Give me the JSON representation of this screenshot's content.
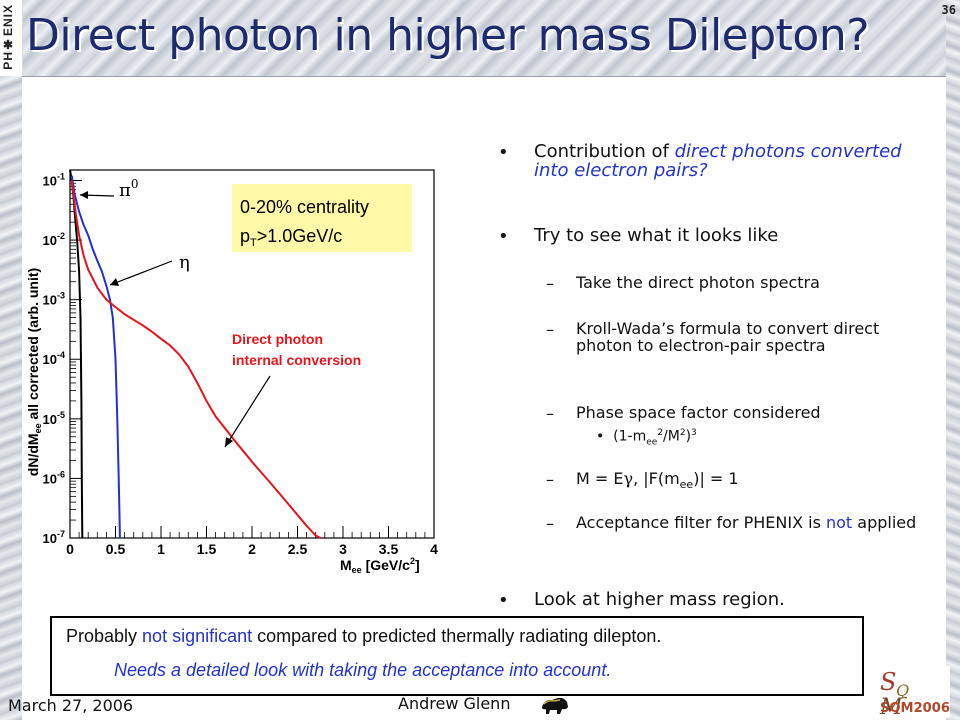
{
  "slide": {
    "number": "36",
    "title": "Direct photon in higher mass Dilepton?",
    "logo_text": "PH✱ENIX"
  },
  "bullets": {
    "b1_pre": "Contribution of ",
    "b1_blue": "direct photons converted into electron pairs?",
    "b2": "Try to see what it looks like",
    "s1": "Take the direct photon spectra",
    "s2": "Kroll-Wada’s formula to convert direct photon to electron-pair spectra",
    "s3": "Phase space factor considered",
    "s3_sub": "(1-m",
    "s3_sub_ee": "ee",
    "s3_sub_rest": "/M",
    "s3_sub_end": ")",
    "s4_pre": "M = E",
    "s4_gamma": "γ",
    "s4_mid": ",  |F(m",
    "s4_ee": "ee",
    "s4_end": ")| = 1",
    "s5_pre": "Acceptance filter for PHENIX is ",
    "s5_blue": "not",
    "s5_post": " applied",
    "b3": "Look at higher mass region."
  },
  "box": {
    "l1_pre": "Probably ",
    "l1_blue": "not significant",
    "l1_post": " compared to predicted thermally radiating dilepton.",
    "l2": "Needs a detailed look with taking the acceptance into account."
  },
  "footer": {
    "date": "March 27, 2006",
    "author": "Andrew Glenn",
    "conf": "SQM2006"
  },
  "chart_data": {
    "type": "line",
    "xlabel": "M",
    "xlabel_sub": "ee",
    "xlabel_units": " [GeV/c",
    "xlabel_units_end": "]",
    "ylabel": "dN/dM",
    "ylabel_sub": "ee",
    "ylabel_rest": " all corrected (arb. unit)",
    "xlim": [
      0,
      4
    ],
    "ylim": [
      1e-07,
      0.15
    ],
    "yscale": "log",
    "x_ticks": [
      "0",
      "0.5",
      "1",
      "1.5",
      "2",
      "2.5",
      "3",
      "3.5",
      "4"
    ],
    "y_ticks": [
      "10",
      "10",
      "10",
      "10",
      "10",
      "10",
      "10"
    ],
    "y_tick_exps": [
      "-1",
      "-2",
      "-3",
      "-4",
      "-5",
      "-6",
      "-7"
    ],
    "legend_box": {
      "line1": "0-20% centrality",
      "line2_pre": "p",
      "line2_sub": "T",
      "line2_post": ">1.0GeV/c"
    },
    "labels": {
      "pi0": "π",
      "pi0_sup": "0",
      "eta": "η",
      "direct": "Direct photon",
      "direct2": "internal conversion"
    },
    "colors": {
      "pi0": "#000000",
      "eta": "#2233cc",
      "direct": "#e8141b",
      "legend_bg": "#fff9a8"
    },
    "series": [
      {
        "id": "pi0",
        "x": [
          0.0,
          0.02,
          0.04,
          0.06,
          0.08,
          0.1,
          0.115,
          0.125,
          0.13,
          0.135
        ],
        "y": [
          0.15,
          0.1,
          0.05,
          0.02,
          0.009,
          0.003,
          0.0005,
          2e-05,
          1e-06,
          1e-07
        ]
      },
      {
        "id": "eta",
        "x": [
          0.02,
          0.05,
          0.1,
          0.15,
          0.2,
          0.25,
          0.3,
          0.35,
          0.4,
          0.44,
          0.47,
          0.5,
          0.52,
          0.535,
          0.545,
          0.548
        ],
        "y": [
          0.12,
          0.06,
          0.03,
          0.018,
          0.012,
          0.007,
          0.0045,
          0.003,
          0.0017,
          0.001,
          0.0005,
          0.0001,
          1e-05,
          1e-06,
          2e-07,
          1e-07
        ]
      },
      {
        "id": "direct",
        "x": [
          0.02,
          0.06,
          0.1,
          0.15,
          0.2,
          0.3,
          0.4,
          0.5,
          0.6,
          0.7,
          0.8,
          0.9,
          1.0,
          1.1,
          1.2,
          1.3,
          1.4,
          1.5,
          1.6,
          1.8,
          2.0,
          2.2,
          2.4,
          2.6,
          2.7,
          2.75
        ],
        "y": [
          0.1,
          0.03,
          0.012,
          0.0055,
          0.0032,
          0.0016,
          0.001,
          0.00075,
          0.00057,
          0.00046,
          0.00037,
          0.00029,
          0.00022,
          0.00017,
          0.00012,
          7.5e-05,
          4e-05,
          2e-05,
          1.1e-05,
          4.5e-06,
          1.9e-06,
          8.5e-07,
          3.7e-07,
          1.6e-07,
          1.1e-07,
          1e-07
        ]
      }
    ]
  }
}
